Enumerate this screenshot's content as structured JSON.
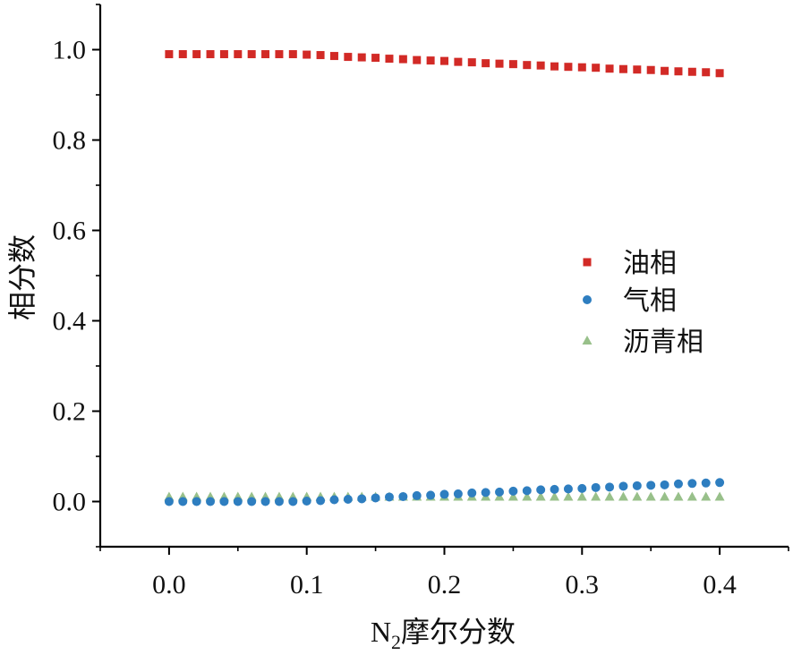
{
  "chart_data": {
    "type": "scatter",
    "title": "",
    "xlabel_main": "N",
    "xlabel_sub": "2",
    "xlabel_rest": "摩尔分数",
    "ylabel": "相分数",
    "xlim": [
      -0.05,
      0.45
    ],
    "ylim": [
      -0.1,
      1.1
    ],
    "xticks": [
      0.0,
      0.1,
      0.2,
      0.3,
      0.4
    ],
    "xtick_labels": [
      "0.0",
      "0.1",
      "0.2",
      "0.3",
      "0.4"
    ],
    "yticks": [
      0.0,
      0.2,
      0.4,
      0.6,
      0.8,
      1.0
    ],
    "ytick_labels": [
      "0.0",
      "0.2",
      "0.4",
      "0.6",
      "0.8",
      "1.0"
    ],
    "legend_position": "center-right",
    "x": [
      0.0,
      0.01,
      0.02,
      0.03,
      0.04,
      0.05,
      0.06,
      0.07,
      0.08,
      0.09,
      0.1,
      0.11,
      0.12,
      0.13,
      0.14,
      0.15,
      0.16,
      0.17,
      0.18,
      0.19,
      0.2,
      0.21,
      0.22,
      0.23,
      0.24,
      0.25,
      0.26,
      0.27,
      0.28,
      0.29,
      0.3,
      0.31,
      0.32,
      0.33,
      0.34,
      0.35,
      0.36,
      0.37,
      0.38,
      0.39,
      0.4
    ],
    "series": [
      {
        "name": "油相",
        "marker": "square",
        "color": "#D22A26",
        "values": [
          0.99,
          0.99,
          0.99,
          0.99,
          0.99,
          0.99,
          0.99,
          0.99,
          0.99,
          0.99,
          0.989,
          0.988,
          0.986,
          0.984,
          0.983,
          0.982,
          0.98,
          0.979,
          0.977,
          0.976,
          0.975,
          0.973,
          0.972,
          0.97,
          0.969,
          0.968,
          0.966,
          0.965,
          0.963,
          0.962,
          0.961,
          0.96,
          0.958,
          0.957,
          0.956,
          0.955,
          0.953,
          0.952,
          0.951,
          0.95,
          0.948
        ]
      },
      {
        "name": "气相",
        "marker": "circle",
        "color": "#2E7EC0",
        "values": [
          0.0,
          0.0,
          0.0,
          0.0,
          0.0,
          0.0,
          0.0,
          0.0,
          0.0,
          0.0,
          0.001,
          0.002,
          0.004,
          0.005,
          0.006,
          0.008,
          0.01,
          0.011,
          0.013,
          0.014,
          0.016,
          0.017,
          0.019,
          0.02,
          0.021,
          0.023,
          0.024,
          0.026,
          0.027,
          0.028,
          0.029,
          0.031,
          0.032,
          0.034,
          0.035,
          0.036,
          0.037,
          0.039,
          0.04,
          0.041,
          0.042
        ]
      },
      {
        "name": "沥青相",
        "marker": "triangle",
        "color": "#98C08A",
        "values": [
          0.01,
          0.01,
          0.01,
          0.01,
          0.01,
          0.01,
          0.01,
          0.01,
          0.01,
          0.01,
          0.01,
          0.01,
          0.01,
          0.01,
          0.01,
          0.01,
          0.01,
          0.01,
          0.01,
          0.01,
          0.01,
          0.01,
          0.01,
          0.01,
          0.01,
          0.01,
          0.01,
          0.01,
          0.01,
          0.01,
          0.01,
          0.01,
          0.01,
          0.01,
          0.01,
          0.01,
          0.01,
          0.01,
          0.01,
          0.01,
          0.01
        ]
      }
    ]
  }
}
